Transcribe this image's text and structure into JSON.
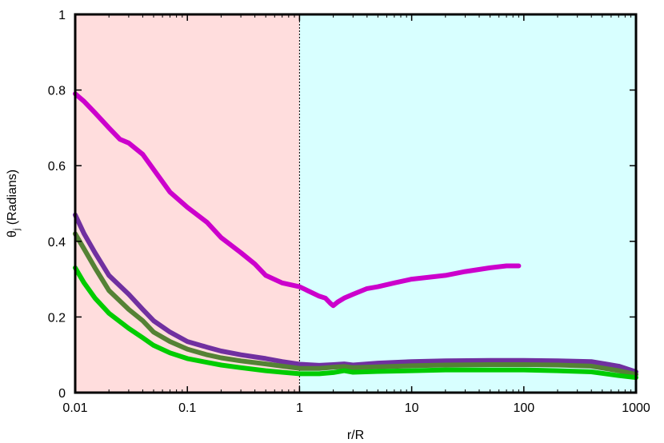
{
  "chart_data": {
    "type": "line",
    "xscale": "log",
    "xlabel": "r/R",
    "ylabel_main": "θ",
    "ylabel_sub": "j",
    "ylabel_rest": " (Radians)",
    "xlim": [
      0.01,
      1000
    ],
    "ylim": [
      0,
      1
    ],
    "xticks": [
      {
        "value": 0.01,
        "label": "0.01"
      },
      {
        "value": 0.1,
        "label": "0.1"
      },
      {
        "value": 1,
        "label": "1"
      },
      {
        "value": 10,
        "label": "10"
      },
      {
        "value": 100,
        "label": "100"
      },
      {
        "value": 1000,
        "label": "1000"
      }
    ],
    "yticks": [
      {
        "value": 0,
        "label": "0"
      },
      {
        "value": 0.2,
        "label": "0.2"
      },
      {
        "value": 0.4,
        "label": "0.4"
      },
      {
        "value": 0.6,
        "label": "0.6"
      },
      {
        "value": 0.8,
        "label": "0.8"
      },
      {
        "value": 1,
        "label": "1"
      }
    ],
    "grid": false,
    "regions": [
      {
        "x0": 0.01,
        "x1": 1,
        "color": "#ffdddd"
      },
      {
        "x0": 1,
        "x1": 1000,
        "color": "#d8ffff"
      }
    ],
    "divider_x": 1,
    "series": [
      {
        "color": "#cc00cc",
        "x": [
          0.01,
          0.012,
          0.015,
          0.02,
          0.025,
          0.03,
          0.04,
          0.05,
          0.07,
          0.1,
          0.15,
          0.2,
          0.3,
          0.4,
          0.5,
          0.7,
          1.0,
          1.5,
          1.7,
          1.9,
          2.0,
          2.2,
          2.5,
          3,
          4,
          5,
          7,
          10,
          20,
          30,
          50,
          70,
          90
        ],
        "y": [
          0.79,
          0.77,
          0.74,
          0.7,
          0.67,
          0.66,
          0.63,
          0.59,
          0.53,
          0.49,
          0.45,
          0.41,
          0.37,
          0.34,
          0.31,
          0.29,
          0.28,
          0.255,
          0.25,
          0.235,
          0.23,
          0.24,
          0.25,
          0.26,
          0.275,
          0.28,
          0.29,
          0.3,
          0.31,
          0.32,
          0.33,
          0.335,
          0.335
        ]
      },
      {
        "color": "#7030a0",
        "x": [
          0.01,
          0.012,
          0.015,
          0.02,
          0.03,
          0.04,
          0.05,
          0.07,
          0.1,
          0.15,
          0.2,
          0.3,
          0.5,
          0.7,
          1,
          1.5,
          2,
          2.5,
          3,
          5,
          10,
          20,
          50,
          100,
          200,
          400,
          700,
          1000
        ],
        "y": [
          0.47,
          0.42,
          0.37,
          0.31,
          0.26,
          0.22,
          0.19,
          0.16,
          0.135,
          0.12,
          0.11,
          0.1,
          0.09,
          0.082,
          0.075,
          0.072,
          0.074,
          0.076,
          0.073,
          0.078,
          0.082,
          0.084,
          0.085,
          0.085,
          0.084,
          0.082,
          0.07,
          0.055
        ]
      },
      {
        "color": "#548235",
        "x": [
          0.01,
          0.012,
          0.015,
          0.02,
          0.03,
          0.04,
          0.05,
          0.07,
          0.1,
          0.15,
          0.2,
          0.3,
          0.5,
          0.7,
          1,
          1.5,
          2,
          2.5,
          3,
          5,
          10,
          20,
          50,
          100,
          200,
          400,
          700,
          1000
        ],
        "y": [
          0.42,
          0.38,
          0.33,
          0.27,
          0.22,
          0.19,
          0.16,
          0.135,
          0.115,
          0.1,
          0.092,
          0.084,
          0.076,
          0.07,
          0.064,
          0.064,
          0.067,
          0.069,
          0.066,
          0.068,
          0.071,
          0.073,
          0.074,
          0.074,
          0.073,
          0.07,
          0.058,
          0.048
        ]
      },
      {
        "color": "#00cc00",
        "x": [
          0.01,
          0.012,
          0.015,
          0.02,
          0.03,
          0.04,
          0.05,
          0.07,
          0.1,
          0.15,
          0.2,
          0.3,
          0.5,
          0.7,
          1,
          1.5,
          2,
          2.5,
          3,
          5,
          10,
          20,
          50,
          100,
          200,
          400,
          700,
          1000
        ],
        "y": [
          0.33,
          0.29,
          0.25,
          0.21,
          0.17,
          0.145,
          0.125,
          0.105,
          0.09,
          0.08,
          0.073,
          0.066,
          0.058,
          0.054,
          0.05,
          0.05,
          0.053,
          0.058,
          0.054,
          0.056,
          0.058,
          0.06,
          0.06,
          0.06,
          0.058,
          0.055,
          0.045,
          0.04
        ]
      }
    ]
  }
}
